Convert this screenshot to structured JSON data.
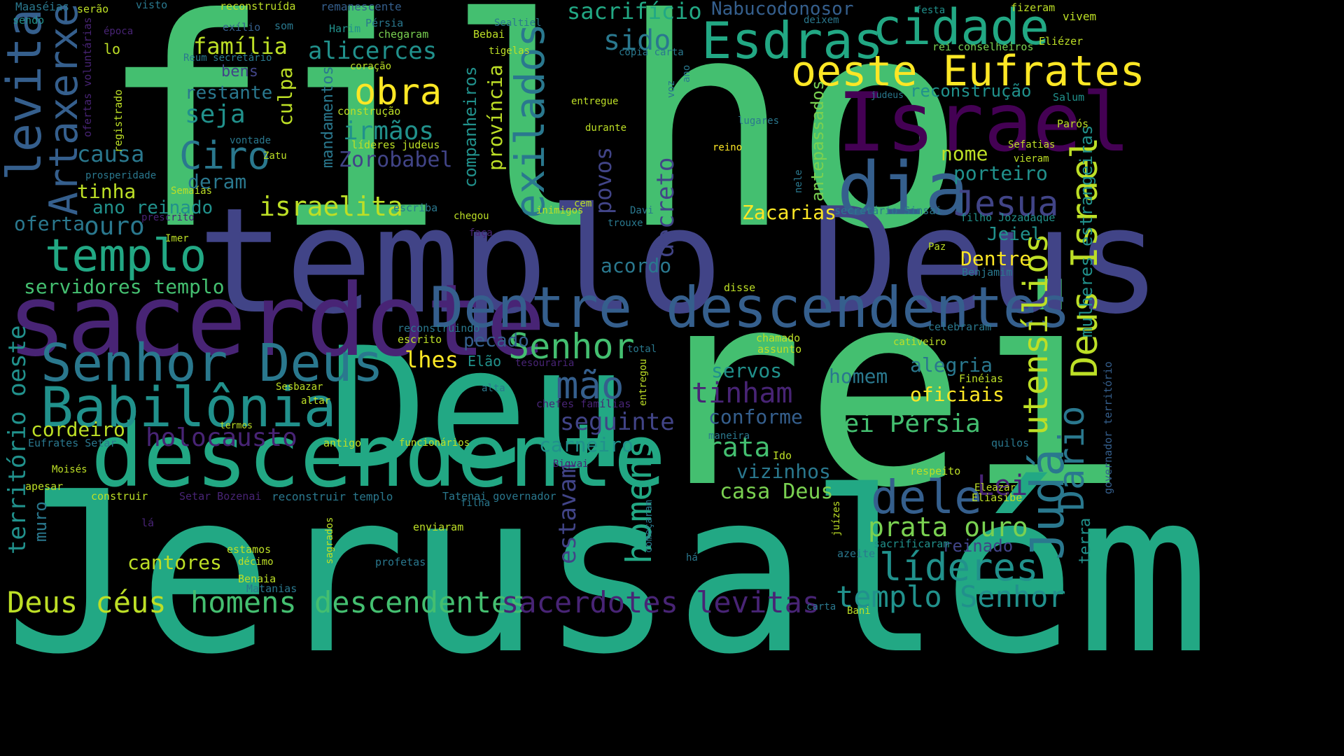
{
  "palette": {
    "yellow": "#fde725",
    "lime": "#bddf26",
    "green": "#7ad151",
    "teal_green": "#44bf70",
    "sea_green": "#22a884",
    "teal": "#21918c",
    "steel": "#2a788e",
    "blue": "#355f8d",
    "indigo": "#414487",
    "purple": "#482475",
    "dark_purple": "#440154"
  },
  "words": {
    "filho": "filho",
    "rei": "rei",
    "jerusalem": "Jerusalém",
    "templo_deus": "templo Deus",
    "deu": "Deu",
    "sacerdote": "sacerdote",
    "descendente": "descendente",
    "israel": "Israel",
    "dentre_descendentes": "Dentre descendentes",
    "dia": "dia",
    "senhor_deus": "Senhor Deus",
    "babilonia": "Babilônia",
    "esdras": "Esdras",
    "cidade": "cidade",
    "oeste_eufrates": "oeste Eufrates",
    "levita": "levita",
    "artaxerxes": "Artaxerxes",
    "templo": "templo",
    "ciro": "Ciro",
    "obra": "obra",
    "exilados": "exilados",
    "dele": "dele",
    "juda": "Judá",
    "dario": "Dario",
    "deus_israel": "Deus Israel",
    "utensilios": "utensílios",
    "jesua": "Jesua",
    "homens_descendentes": "homens descendentes",
    "sacerdotes_levitas": "sacerdotes levitas",
    "senhor": "Senhor",
    "mao": "mão",
    "lideres": "líderes",
    "templo_senhor": "templo Senhor",
    "deus_ceus": "Deus céus",
    "sacrificio": "sacrifício",
    "nabucodonosor": "Nabucodonosor",
    "alicerces": "alicerces",
    "familia": "família",
    "sido": "sido",
    "irmaos": "irmãos",
    "seja": "seja",
    "causa": "causa",
    "israelita": "israelita",
    "tinha": "tinha",
    "ouro": "ouro",
    "ano_reinado": "ano reinado",
    "oferta": "oferta",
    "deram": "deram",
    "zorobabel": "Zorobabel",
    "servidores_templo": "servidores templo",
    "cordeiro": "cordeiro",
    "holocausto": "holocausto",
    "cantores": "cantores",
    "seguinte": "seguinte",
    "tinham": "tinham",
    "prata": "prata",
    "prata_ouro": "prata ouro",
    "rei_persia": "rei Pérsia",
    "casa_deus": "casa Deus",
    "homens": "homens",
    "estavam": "estavam",
    "decreto": "decreto",
    "povos": "povos",
    "zacarias": "Zacarias",
    "acordo": "acordo",
    "servos": "servos",
    "conforme": "conforme",
    "carneiro": "carneiro",
    "vizinhos": "vizinhos",
    "lei": "Lei",
    "oficiais": "oficiais",
    "alegria": "alegria",
    "homem": "homem",
    "territorio_oeste": "território oeste",
    "muro": "muro",
    "lhes": "lhes",
    "pecado": "pecado",
    "elao": "Elão",
    "culpa": "culpa",
    "restante": "restante",
    "bens": "bens",
    "provincia": "província",
    "companheiros": "companheiros",
    "mandamentos": "mandamentos",
    "nome": "nome",
    "porteiro": "porteiro",
    "dentre": "Dentre",
    "jeiel": "Jeiel",
    "mulheres_estrangeiras": "mulheres estrangeiras",
    "reconstrucao": "reconstrução",
    "antepassados": "antepassados",
    "reinado": "reinado",
    "maaseias": "Maaséias",
    "serao": "serão",
    "visto": "visto",
    "reconstruida": "reconstruída",
    "remanescente": "remanescente",
    "festa": "festa",
    "fizeram": "fizeram",
    "vivem": "vivem",
    "sendo": "sendo",
    "epoca": "época",
    "exilio": "exílio",
    "som": "som",
    "harim": "Harim",
    "persia": "Pérsia",
    "sealtiel": "Sealtiel",
    "deixem": "deixem",
    "eliezer": "Eliézer",
    "lo": "lo",
    "chegaram": "chegaram",
    "bebai": "Bebai",
    "tigelas": "tigelas",
    "rei_conselheiros": "rei conselheiros",
    "copia_carta": "cópia carta",
    "reum_secretario": "Reum secretário",
    "ofertas_voluntarias": "ofertas voluntárias",
    "coracao": "coração",
    "ano": "ano",
    "voz": "voz",
    "judeus": "judeus",
    "salum": "Salum",
    "paros": "Parós",
    "sefatias": "Sefatias",
    "vieram": "vieram",
    "registrado": "registrado",
    "construcao": "construção",
    "entregue": "entregue",
    "lugares": "lugares",
    "durante": "durante",
    "reino": "reino",
    "lideres_judeus": "líderes judeus",
    "vontade": "vontade",
    "zatu": "Zatu",
    "prosperidade": "prosperidade",
    "semaias": "Semaías",
    "escriba": "escriba",
    "chegou": "chegou",
    "inimigos": "inimigos",
    "cem": "cem",
    "davi": "Davi",
    "trouxe": "trouxe",
    "nele": "nele",
    "secretario_sinsai": "secretário Sinsai",
    "filho_jozadaque": "filho Jozadaque",
    "prescrito": "prescrito",
    "faca": "faça",
    "imer": "Imer",
    "paz": "Paz",
    "benjamim": "Benjamim",
    "disse": "disse",
    "reconstruindo": "reconstruindo",
    "escrito": "escrito",
    "chamado": "chamado",
    "assunto": "assunto",
    "cativeiro": "cativeiro",
    "celebraram": "celebraram",
    "total": "total",
    "tesouraria": "tesouraria",
    "entregou": "entregou",
    "sesbazar": "Sesbazar",
    "altar": "altar",
    "alta": "alta",
    "chefes_familias": "chefes famílias",
    "fineias": "Finéias",
    "governador_territorio": "governador território",
    "termos": "termos",
    "eufrates_setar": "Eufrates Setar",
    "antigo": "antigo",
    "funcionarios": "funcionários",
    "maneira": "maneira",
    "quilos": "quilos",
    "moises": "Moisés",
    "bigvai": "Bigvai",
    "ido": "Ido",
    "respeito": "respeito",
    "apesar": "apesar",
    "construir": "construir",
    "setar_bozenai": "Setar Bozenai",
    "reconstruir_templo": "reconstruir templo",
    "tatenai_governador": "Tatenai governador",
    "filha": "filha",
    "comecaram": "começaram",
    "eleazar": "Eleazar",
    "eliasibe": "Eliasibe",
    "terra": "terra",
    "la": "lá",
    "enviaram": "enviaram",
    "juizes": "juízes",
    "sacrificaram": "sacrificaram",
    "estamos": "estamos",
    "sagrados": "sagrados",
    "decimo": "décimo",
    "profetas": "profetas",
    "ha": "há",
    "azeite": "azeite",
    "benaia": "Benaia",
    "matanias": "Matanias",
    "carta": "carta",
    "bani": "Bani"
  }
}
